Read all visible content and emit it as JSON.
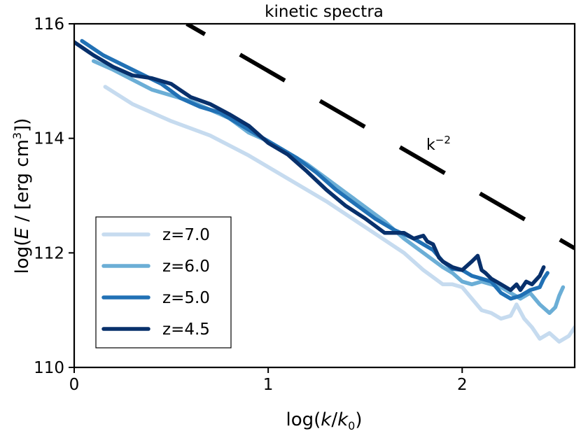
{
  "chart_data": {
    "type": "line",
    "title": "kinetic spectra",
    "xlabel": {
      "pre": "log(",
      "var": "k",
      "mid": "/",
      "var2": "k",
      "sub": "0",
      "post": ")"
    },
    "ylabel": {
      "pre": "log(",
      "var": "E",
      "mid": " / [erg cm",
      "sup": "3",
      "post": "])"
    },
    "xlim": [
      0,
      2.58
    ],
    "ylim": [
      110,
      116
    ],
    "xticks": [
      0,
      1,
      2
    ],
    "xtick_labels": [
      "0",
      "1",
      "2"
    ],
    "yticks": [
      110,
      112,
      114,
      116
    ],
    "ytick_labels": [
      "110",
      "112",
      "114",
      "116"
    ],
    "legend_position": "lower-left",
    "series": [
      {
        "name": "z=7.0",
        "color": "#c6dbef",
        "x": [
          0.16,
          0.3,
          0.5,
          0.7,
          0.9,
          1.0,
          1.1,
          1.3,
          1.5,
          1.7,
          1.8,
          1.9,
          1.95,
          2.0,
          2.05,
          2.1,
          2.15,
          2.2,
          2.25,
          2.28,
          2.32,
          2.36,
          2.4,
          2.45,
          2.5,
          2.55,
          2.58
        ],
        "y": [
          114.9,
          114.6,
          114.3,
          114.05,
          113.7,
          113.5,
          113.3,
          112.9,
          112.45,
          112.0,
          111.7,
          111.45,
          111.45,
          111.4,
          111.2,
          111.0,
          110.95,
          110.85,
          110.9,
          111.1,
          110.85,
          110.7,
          110.5,
          110.6,
          110.45,
          110.55,
          110.7
        ]
      },
      {
        "name": "z=6.0",
        "color": "#6baed6",
        "x": [
          0.1,
          0.2,
          0.4,
          0.6,
          0.8,
          0.9,
          1.0,
          1.2,
          1.4,
          1.6,
          1.7,
          1.8,
          1.9,
          1.95,
          2.0,
          2.05,
          2.1,
          2.2,
          2.25,
          2.3,
          2.35,
          2.4,
          2.45,
          2.48,
          2.5,
          2.52
        ],
        "y": [
          115.35,
          115.2,
          114.85,
          114.65,
          114.35,
          114.1,
          113.95,
          113.55,
          113.05,
          112.55,
          112.25,
          112.0,
          111.75,
          111.65,
          111.5,
          111.45,
          111.5,
          111.4,
          111.3,
          111.2,
          111.3,
          111.1,
          110.95,
          111.05,
          111.25,
          111.4
        ]
      },
      {
        "name": "z=5.0",
        "color": "#2171b5",
        "x": [
          0.04,
          0.15,
          0.3,
          0.45,
          0.55,
          0.65,
          0.75,
          0.85,
          0.95,
          1.05,
          1.15,
          1.25,
          1.35,
          1.45,
          1.55,
          1.65,
          1.75,
          1.8,
          1.85,
          1.9,
          1.95,
          2.0,
          2.05,
          2.1,
          2.15,
          2.2,
          2.25,
          2.3,
          2.35,
          2.4,
          2.42,
          2.44
        ],
        "y": [
          115.7,
          115.45,
          115.2,
          114.95,
          114.7,
          114.55,
          114.45,
          114.25,
          114.05,
          113.85,
          113.65,
          113.4,
          113.1,
          112.85,
          112.6,
          112.4,
          112.25,
          112.15,
          112.05,
          111.85,
          111.72,
          111.7,
          111.6,
          111.55,
          111.5,
          111.3,
          111.2,
          111.25,
          111.35,
          111.4,
          111.55,
          111.65
        ]
      },
      {
        "name": "z=4.5",
        "color": "#08306b",
        "x": [
          0.0,
          0.1,
          0.2,
          0.3,
          0.4,
          0.5,
          0.6,
          0.7,
          0.8,
          0.9,
          1.0,
          1.1,
          1.2,
          1.3,
          1.4,
          1.5,
          1.6,
          1.7,
          1.75,
          1.8,
          1.82,
          1.85,
          1.88,
          1.9,
          1.95,
          2.0,
          2.05,
          2.08,
          2.1,
          2.12,
          2.15,
          2.2,
          2.25,
          2.28,
          2.3,
          2.33,
          2.36,
          2.4,
          2.42
        ],
        "y": [
          115.68,
          115.45,
          115.25,
          115.1,
          115.05,
          114.95,
          114.72,
          114.6,
          114.42,
          114.22,
          113.92,
          113.72,
          113.42,
          113.1,
          112.82,
          112.6,
          112.35,
          112.35,
          112.25,
          112.3,
          112.2,
          112.15,
          111.92,
          111.85,
          111.75,
          111.7,
          111.85,
          111.95,
          111.7,
          111.65,
          111.55,
          111.45,
          111.35,
          111.45,
          111.35,
          111.5,
          111.45,
          111.6,
          111.75
        ]
      }
    ],
    "reference_line": {
      "label_base": "k",
      "label_exp": "−2",
      "x": [
        0.58,
        2.58
      ],
      "y": [
        116.0,
        112.08
      ],
      "style": "dashed",
      "color": "#000000"
    }
  }
}
